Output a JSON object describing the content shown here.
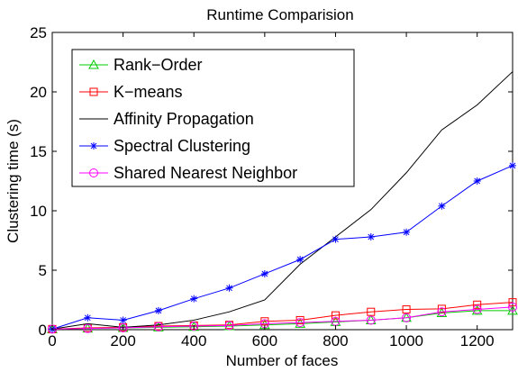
{
  "chart_data": {
    "type": "line",
    "title": "Runtime Comparision",
    "xlabel": "Number of faces",
    "ylabel": "Clustering time (s)",
    "xlim": [
      0,
      1300
    ],
    "ylim": [
      0,
      25
    ],
    "xticks": [
      0,
      200,
      400,
      600,
      800,
      1000,
      1200
    ],
    "yticks": [
      0,
      5,
      10,
      15,
      20,
      25
    ],
    "grid": false,
    "legend_position": "top-left",
    "x": [
      0,
      100,
      200,
      300,
      400,
      500,
      600,
      700,
      800,
      900,
      1000,
      1100,
      1200,
      1300
    ],
    "series": [
      {
        "name": "Rank−Order",
        "color": "#00cc00",
        "marker": "triangle",
        "values": [
          0.05,
          0.1,
          0.15,
          0.2,
          0.25,
          0.3,
          0.4,
          0.5,
          0.65,
          0.8,
          1.0,
          1.4,
          1.6,
          1.6
        ]
      },
      {
        "name": "K−means",
        "color": "#ff0000",
        "marker": "square",
        "values": [
          0.05,
          0.15,
          0.2,
          0.3,
          0.35,
          0.4,
          0.7,
          0.8,
          1.2,
          1.5,
          1.7,
          1.75,
          2.1,
          2.3
        ]
      },
      {
        "name": "Affinity Propagation",
        "color": "#000000",
        "marker": "none",
        "values": [
          0.05,
          0.5,
          0.2,
          0.4,
          0.8,
          1.5,
          2.5,
          5.5,
          7.8,
          10.1,
          13.2,
          16.8,
          18.9,
          21.7
        ]
      },
      {
        "name": "Spectral Clustering",
        "color": "#0000ff",
        "marker": "star",
        "values": [
          0.05,
          1.0,
          0.8,
          1.6,
          2.6,
          3.5,
          4.7,
          5.9,
          7.6,
          7.8,
          8.2,
          10.4,
          12.5,
          13.8
        ]
      },
      {
        "name": "Shared Nearest Neighbor",
        "color": "#ff00ff",
        "marker": "circle",
        "values": [
          0.05,
          0.1,
          0.15,
          0.25,
          0.3,
          0.35,
          0.5,
          0.6,
          0.7,
          0.8,
          1.0,
          1.5,
          1.7,
          1.9
        ]
      }
    ]
  }
}
